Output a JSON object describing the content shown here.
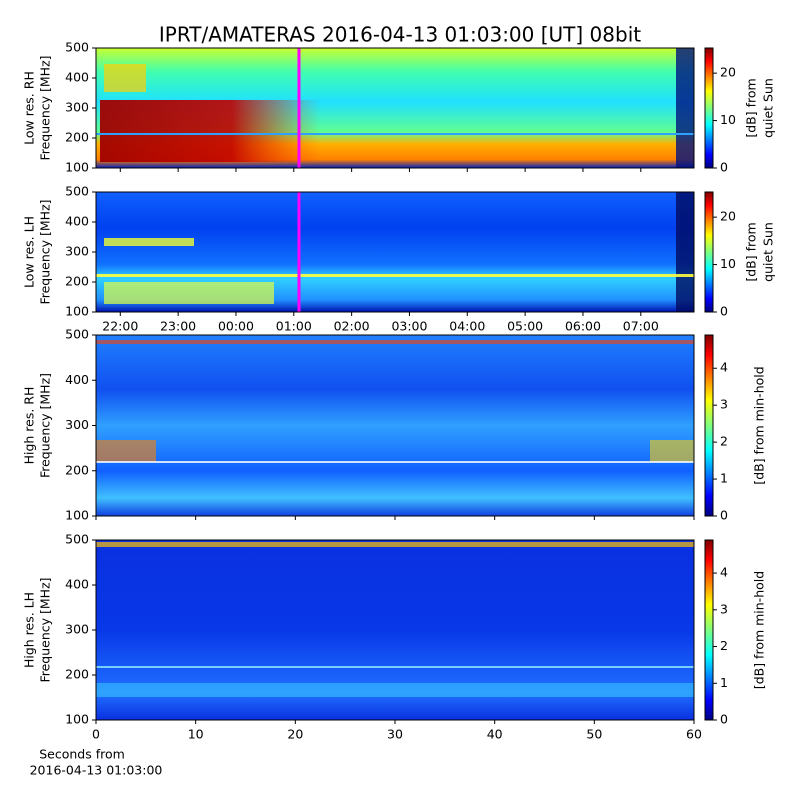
{
  "title": "IPRT/AMATERAS 2016-04-13 01:03:00 [UT]   08bit",
  "chart_data": [
    {
      "type": "spectrogram",
      "ylabel": [
        "Low res. RH",
        "Frequency [MHz]"
      ],
      "ylim": [
        100,
        500
      ],
      "yticks": [
        100,
        200,
        300,
        400,
        500
      ],
      "xlim": [
        21.58,
        31.92
      ],
      "colorbar": {
        "label": [
          "[dB] from",
          "quiet Sun"
        ],
        "lim": [
          0,
          25.3
        ],
        "ticks": [
          0,
          10,
          20
        ]
      }
    },
    {
      "type": "spectrogram",
      "ylabel": [
        "Low res. LH",
        "Frequency [MHz]"
      ],
      "ylim": [
        100,
        500
      ],
      "yticks": [
        100,
        200,
        300,
        400,
        500
      ],
      "xlim": [
        21.58,
        31.92
      ],
      "xticks": [
        {
          "value": 22,
          "label": "22:00"
        },
        {
          "value": 23,
          "label": "23:00"
        },
        {
          "value": 24,
          "label": "00:00"
        },
        {
          "value": 25,
          "label": "01:00"
        },
        {
          "value": 26,
          "label": "02:00"
        },
        {
          "value": 27,
          "label": "03:00"
        },
        {
          "value": 28,
          "label": "04:00"
        },
        {
          "value": 29,
          "label": "05:00"
        },
        {
          "value": 30,
          "label": "06:00"
        },
        {
          "value": 31,
          "label": "07:00"
        }
      ],
      "colorbar": {
        "label": [
          "[dB] from",
          "quiet Sun"
        ],
        "lim": [
          0,
          25.3
        ],
        "ticks": [
          0,
          10,
          20
        ]
      }
    },
    {
      "type": "spectrogram",
      "ylabel": [
        "High res. RH",
        "Frequency [MHz]"
      ],
      "ylim": [
        100,
        500
      ],
      "yticks": [
        100,
        200,
        300,
        400,
        500
      ],
      "xlim": [
        0,
        60
      ],
      "colorbar": {
        "label": [
          "[dB] from min-hold"
        ],
        "lim": [
          0,
          4.9
        ],
        "ticks": [
          0,
          1,
          2,
          3,
          4
        ]
      }
    },
    {
      "type": "spectrogram",
      "ylabel": [
        "High res. LH",
        "Frequency [MHz]"
      ],
      "ylim": [
        100,
        500
      ],
      "yticks": [
        100,
        200,
        300,
        400,
        500
      ],
      "xlim": [
        0,
        60
      ],
      "xticks": [
        0,
        10,
        20,
        30,
        40,
        50,
        60
      ],
      "xlabel": [
        "Seconds from",
        "2016-04-13 01:03:00"
      ],
      "colorbar": {
        "label": [
          "[dB] from min-hold"
        ],
        "lim": [
          0,
          4.9
        ],
        "ticks": [
          0,
          1,
          2,
          3,
          4
        ]
      }
    }
  ]
}
